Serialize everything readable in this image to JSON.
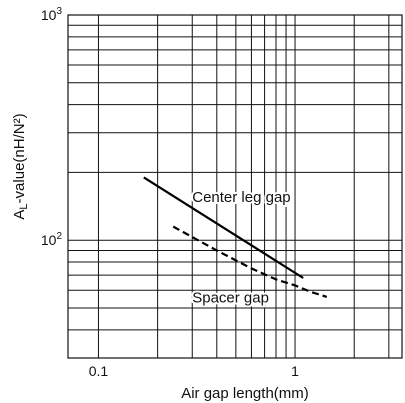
{
  "chart_data": {
    "type": "line",
    "xscale": "log",
    "yscale": "log",
    "xlim": [
      0.07,
      3.5
    ],
    "ylim": [
      30,
      1000
    ],
    "xlabel": "Air gap length(mm)",
    "ylabel_main": "A",
    "ylabel_sub": "L",
    "ylabel_rest": "-value(nH/N²)",
    "x_tick_labels": [
      {
        "value": 0.1,
        "label": "0.1"
      },
      {
        "value": 1,
        "label": "1"
      }
    ],
    "y_tick_labels": [
      {
        "value": 100,
        "base": "10",
        "exp": "2"
      },
      {
        "value": 1000,
        "base": "10",
        "exp": "3"
      }
    ],
    "x_grid": [
      0.1,
      0.2,
      0.3,
      0.4,
      0.5,
      0.6,
      0.7,
      0.8,
      0.9,
      1,
      2,
      3
    ],
    "y_grid": [
      30,
      40,
      50,
      60,
      70,
      80,
      90,
      100,
      200,
      300,
      400,
      500,
      600,
      700,
      800,
      900,
      1000
    ],
    "grid": true,
    "series": [
      {
        "name": "Center leg gap",
        "style": "solid",
        "x": [
          0.17,
          1.1
        ],
        "y": [
          190,
          68
        ]
      },
      {
        "name": "Spacer gap",
        "style": "dashed",
        "x": [
          0.24,
          0.4,
          0.6,
          0.8,
          1.0,
          1.2,
          1.45
        ],
        "y": [
          115,
          90,
          75,
          67,
          63,
          59,
          56
        ]
      }
    ]
  }
}
